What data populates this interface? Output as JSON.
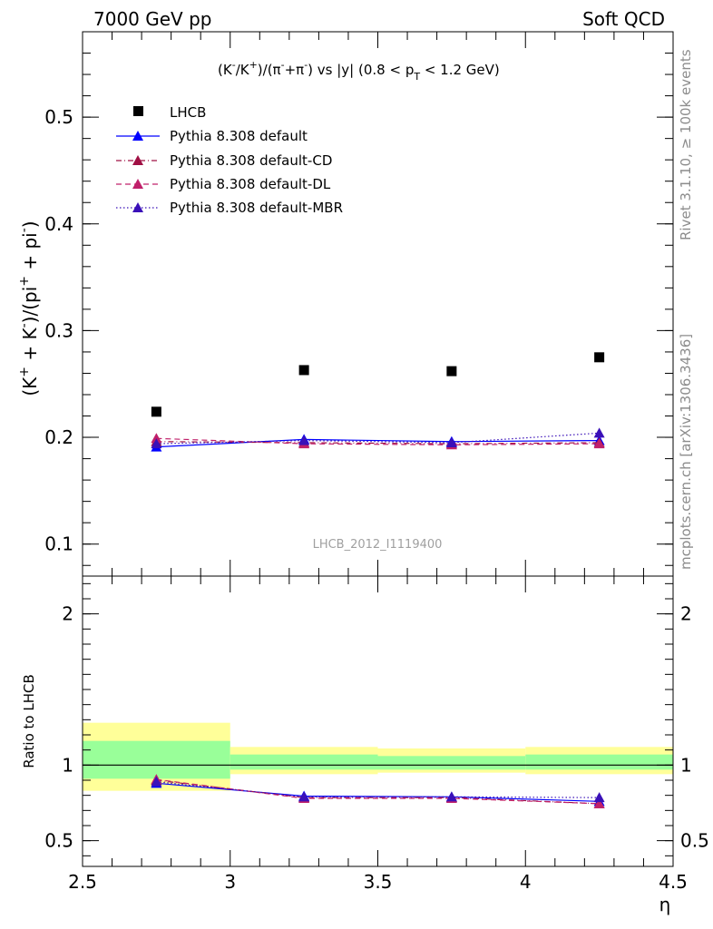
{
  "header": {
    "left": "7000 GeV pp",
    "right": "Soft QCD"
  },
  "side_labels": {
    "rivet": "Rivet 3.1.10, ≥ 100k events",
    "mcplots": "mcplots.cern.ch [arXiv:1306.3436]"
  },
  "chart_data": [
    {
      "type": "scatter",
      "title": {
        "p1": "(K",
        "p1_sup": "-",
        "p2": "/K",
        "p2_sup": "+",
        "p3": ")/(π",
        "p3_sup": "-",
        "p4": "+π",
        "p4_sup": "-",
        "p5": ") vs |y| (0.8 < p",
        "p5_sub": "T",
        "p6": " < 1.2 GeV)"
      },
      "ylabel": {
        "p1": "(K",
        "p1_sup": "+",
        "p2": " + K",
        "p2_sup": "-",
        "p3": ")/(pi",
        "p3_sup": "+",
        "p4": " + pi",
        "p4_sup": "-",
        "p5": ")"
      },
      "watermark": "LHCB_2012_I1119400",
      "xlim": [
        2.5,
        4.5
      ],
      "ylim": [
        0.07,
        0.58
      ],
      "yticks": [
        0.1,
        0.2,
        0.3,
        0.4,
        0.5
      ],
      "ytick_labels": [
        "0.1",
        "0.2",
        "0.3",
        "0.4",
        "0.5"
      ],
      "legend_position": "top-left",
      "x": [
        2.75,
        3.25,
        3.75,
        4.25
      ],
      "series": [
        {
          "name": "LHCB",
          "style": "data-marker",
          "color": "#000000",
          "values": [
            0.224,
            0.263,
            0.262,
            0.275
          ]
        },
        {
          "name": "Pythia 8.308 default",
          "style": "solid",
          "color": "#0000ff",
          "values": [
            0.191,
            0.198,
            0.196,
            0.197
          ],
          "errors": [
            0.002,
            0.002,
            0.002,
            0.002
          ]
        },
        {
          "name": "Pythia 8.308 default-CD",
          "style": "dashdot",
          "color": "#a01044",
          "values": [
            0.196,
            0.195,
            0.194,
            0.195
          ],
          "errors": [
            0.002,
            0.002,
            0.002,
            0.002
          ]
        },
        {
          "name": "Pythia 8.308 default-DL",
          "style": "dashed",
          "color": "#c0206a",
          "values": [
            0.199,
            0.194,
            0.193,
            0.194
          ],
          "errors": [
            0.002,
            0.002,
            0.002,
            0.002
          ]
        },
        {
          "name": "Pythia 8.308 default-MBR",
          "style": "dotted",
          "color": "#3a10b8",
          "values": [
            0.194,
            0.197,
            0.195,
            0.204
          ],
          "errors": [
            0.002,
            0.002,
            0.002,
            0.003
          ]
        }
      ]
    },
    {
      "type": "scatter",
      "ylabel": "Ratio to LHCB",
      "xlabel": "η",
      "xlim": [
        2.5,
        4.5
      ],
      "ylim": [
        0.33,
        2.25
      ],
      "yticks": [
        0.5,
        1,
        2
      ],
      "ytick_labels": [
        "0.5",
        "1",
        "2"
      ],
      "xticks": [
        2.5,
        3,
        3.5,
        4,
        4.5
      ],
      "xtick_labels": [
        "2.5",
        "3",
        "3.5",
        "4",
        "4.5"
      ],
      "bins": [
        [
          2.5,
          3.0
        ],
        [
          3.0,
          3.5
        ],
        [
          3.5,
          4.0
        ],
        [
          4.0,
          4.5
        ]
      ],
      "band_outer": [
        [
          0.83,
          1.28
        ],
        [
          0.94,
          1.12
        ],
        [
          0.95,
          1.11
        ],
        [
          0.94,
          1.12
        ]
      ],
      "band_inner": [
        [
          0.91,
          1.16
        ],
        [
          0.97,
          1.07
        ],
        [
          0.97,
          1.06
        ],
        [
          0.97,
          1.07
        ]
      ],
      "band_colors": {
        "outer": "#ffff99",
        "inner": "#99ff99"
      },
      "x": [
        2.75,
        3.25,
        3.75,
        4.25
      ],
      "series": [
        {
          "name": "Pythia 8.308 default",
          "style": "solid",
          "color": "#0000ff",
          "values": [
            0.88,
            0.795,
            0.79,
            0.76
          ]
        },
        {
          "name": "Pythia 8.308 default-CD",
          "style": "dashdot",
          "color": "#a01044",
          "values": [
            0.9,
            0.785,
            0.785,
            0.745
          ]
        },
        {
          "name": "Pythia 8.308 default-DL",
          "style": "dashed",
          "color": "#c0206a",
          "values": [
            0.905,
            0.78,
            0.78,
            0.745
          ]
        },
        {
          "name": "Pythia 8.308 default-MBR",
          "style": "dotted",
          "color": "#3a10b8",
          "values": [
            0.89,
            0.79,
            0.79,
            0.785
          ]
        }
      ]
    }
  ]
}
